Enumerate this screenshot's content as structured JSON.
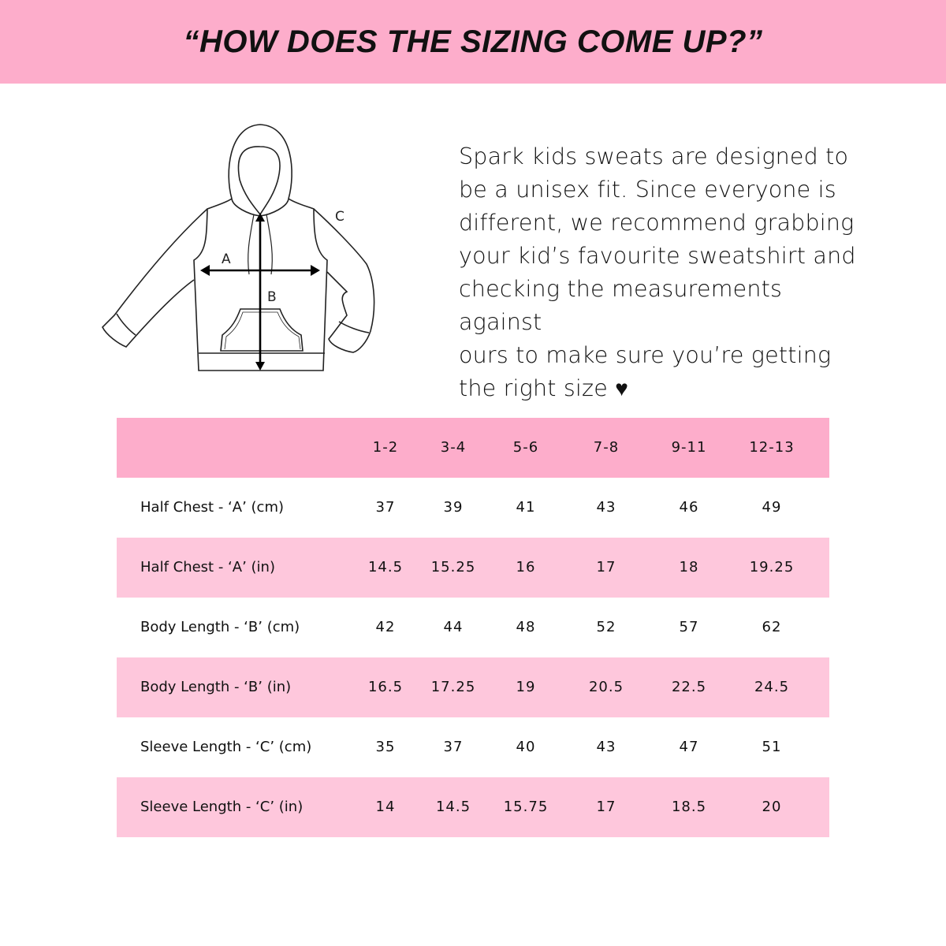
{
  "banner": {
    "title": "“HOW DOES THE SIZING COME UP?”"
  },
  "diagram": {
    "labels": {
      "a": "A",
      "b": "B",
      "c": "C"
    }
  },
  "blurb": {
    "lines": [
      "Spark kids sweats are designed to",
      "be a unisex fit. Since everyone is",
      "different, we recommend grabbing",
      "your kid’s favourite sweatshirt and",
      "checking the measurements against",
      "ours to make sure you’re getting",
      "the right size"
    ],
    "icon": "heart-icon",
    "heart": "♥"
  },
  "colors": {
    "banner": "#fdadcb",
    "header_row": "#fdadcb",
    "alt_row": "#fec7dc"
  },
  "table": {
    "columns": [
      "",
      "1-2",
      "3-4",
      "5-6",
      "7-8",
      "9-11",
      "12-13"
    ],
    "rows": [
      {
        "label": "Half Chest - ‘A’ (cm)",
        "values": [
          "37",
          "39",
          "41",
          "43",
          "46",
          "49"
        ]
      },
      {
        "label": "Half Chest - ‘A’ (in)",
        "values": [
          "14.5",
          "15.25",
          "16",
          "17",
          "18",
          "19.25"
        ]
      },
      {
        "label": "Body Length - ‘B’ (cm)",
        "values": [
          "42",
          "44",
          "48",
          "52",
          "57",
          "62"
        ]
      },
      {
        "label": "Body Length - ‘B’ (in)",
        "values": [
          "16.5",
          "17.25",
          "19",
          "20.5",
          "22.5",
          "24.5"
        ]
      },
      {
        "label": "Sleeve Length - ‘C’ (cm)",
        "values": [
          "35",
          "37",
          "40",
          "43",
          "47",
          "51"
        ]
      },
      {
        "label": "Sleeve Length - ‘C’ (in)",
        "values": [
          "14",
          "14.5",
          "15.75",
          "17",
          "18.5",
          "20"
        ]
      }
    ]
  }
}
